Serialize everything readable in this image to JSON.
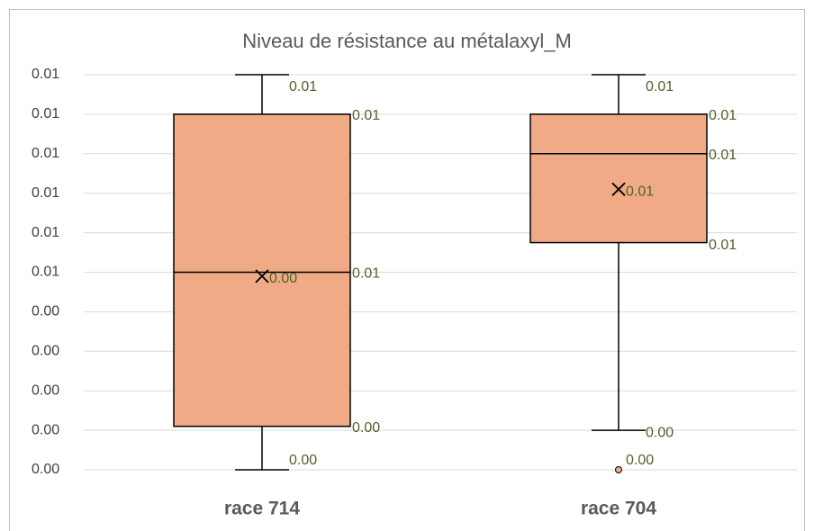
{
  "chart_data": {
    "type": "box",
    "title": "Niveau de résistance au métalaxyl_M",
    "categories": [
      "race 714",
      "race 704"
    ],
    "color": "#f0aa85",
    "grid": true,
    "ylim": [
      0,
      0.01
    ],
    "yticks": [
      {
        "value": 0,
        "label": "0.00"
      },
      {
        "value": 0.001,
        "label": "0.00"
      },
      {
        "value": 0.002,
        "label": "0.00"
      },
      {
        "value": 0.003,
        "label": "0.00"
      },
      {
        "value": 0.004,
        "label": "0.00"
      },
      {
        "value": 0.005,
        "label": "0.01"
      },
      {
        "value": 0.006,
        "label": "0.01"
      },
      {
        "value": 0.007,
        "label": "0.01"
      },
      {
        "value": 0.008,
        "label": "0.01"
      },
      {
        "value": 0.009,
        "label": "0.01"
      },
      {
        "value": 0.01,
        "label": "0.01"
      }
    ],
    "boxes": [
      {
        "min": 0,
        "q1": 0.0011,
        "median": 0.005,
        "q3": 0.009,
        "max": 0.01,
        "mean": 0.0049,
        "outliers": [],
        "value_labels": {
          "min": "0.00",
          "q1": "0.00",
          "median": "0.01",
          "q3": "0.01",
          "max": "0.01",
          "mean": "0.00",
          "outliers": []
        }
      },
      {
        "min": 0.001,
        "q1": 0.00575,
        "median": 0.008,
        "q3": 0.009,
        "max": 0.01,
        "mean": 0.0071,
        "outliers": [
          0
        ],
        "value_labels": {
          "min": "0.00",
          "q1": "0.01",
          "median": "0.01",
          "q3": "0.01",
          "max": "0.01",
          "mean": "0.01",
          "outliers": [
            "0.00"
          ]
        }
      }
    ]
  }
}
